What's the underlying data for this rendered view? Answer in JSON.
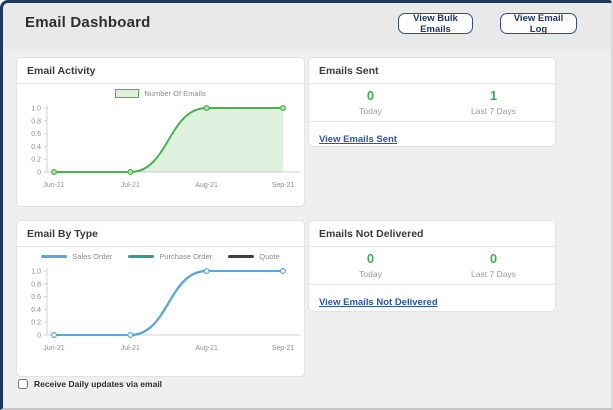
{
  "header": {
    "title": "Email Dashboard",
    "buttons": [
      {
        "label": "View Bulk Emails"
      },
      {
        "label": "View Email Log"
      }
    ]
  },
  "panels": {
    "email_activity": {
      "title": "Email Activity"
    },
    "emails_sent": {
      "title": "Emails Sent",
      "stats": [
        {
          "value": "0",
          "label": "Today"
        },
        {
          "value": "1",
          "label": "Last 7 Days"
        }
      ],
      "link": "View Emails Sent"
    },
    "email_by_type": {
      "title": "Email By Type"
    },
    "emails_not_delivered": {
      "title": "Emails Not Delivered",
      "stats": [
        {
          "value": "0",
          "label": "Today"
        },
        {
          "value": "0",
          "label": "Last 7 Days"
        }
      ],
      "link": "View Emails Not Delivered"
    }
  },
  "footer": {
    "checkbox_label": "Receive Daily updates via email",
    "checked": false
  },
  "colors": {
    "frame_navy": "#1d3862",
    "button_navy": "#1f3c70",
    "stat_green": "#3daf4e",
    "link_blue": "#2b56a4",
    "activity_green": "#4caf50",
    "activity_fill": "rgba(76,175,80,0.18)",
    "sales_order_blue": "#5aa7dc",
    "purchase_order_teal": "#2f9e8e",
    "quote_dark": "#404040"
  },
  "chart_data": [
    {
      "id": "email-activity",
      "title": "Email Activity",
      "type": "area",
      "x": [
        "Jun-21",
        "Jul-21",
        "Aug-21",
        "Sep-21"
      ],
      "series": [
        {
          "name": "Number Of Emails",
          "values": [
            0,
            0,
            1,
            1
          ],
          "color": "#4caf50",
          "fill": "rgba(76,175,80,0.18)",
          "marker_fill": "#b7e1b9"
        }
      ],
      "ylim": [
        0,
        1
      ],
      "yticks": [
        "1.0",
        "0.8",
        "0.6",
        "0.4",
        "0.2",
        "0"
      ],
      "grid": false,
      "legend_position": "top"
    },
    {
      "id": "email-by-type",
      "title": "Email By Type",
      "type": "line",
      "x": [
        "Jun-21",
        "Jul-21",
        "Aug-21",
        "Sep-21"
      ],
      "series": [
        {
          "name": "Sales Order",
          "values": [
            0,
            0,
            1,
            1
          ],
          "color": "#5aa7dc",
          "marker_fill": "#ffffff"
        },
        {
          "name": "Purchase Order",
          "values": [
            0,
            0,
            1,
            1
          ],
          "color": "#2f9e8e"
        },
        {
          "name": "Quote",
          "values": [
            0,
            0,
            1,
            1
          ],
          "color": "#404040"
        }
      ],
      "ylim": [
        0,
        1
      ],
      "yticks": [
        "1.0",
        "0.8",
        "0.6",
        "0.4",
        "0.2",
        "0"
      ],
      "grid": false,
      "legend_position": "top"
    }
  ]
}
